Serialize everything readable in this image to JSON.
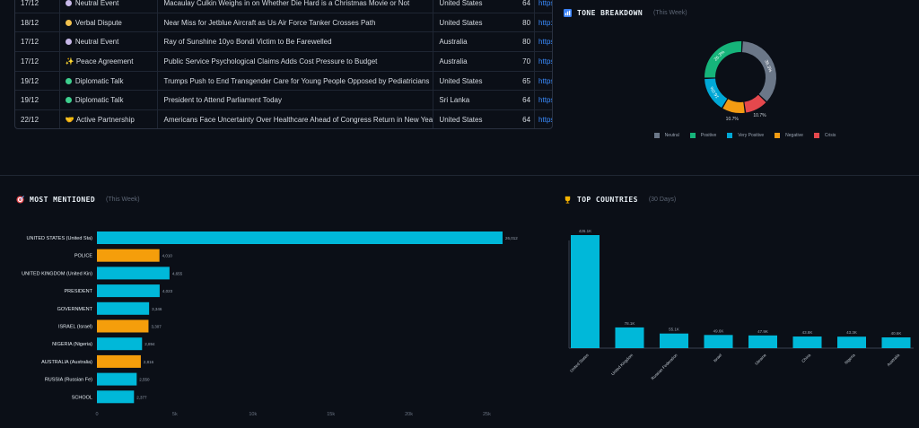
{
  "table": {
    "rows": [
      {
        "date": "17/12",
        "tone": "Neutral Event",
        "tone_color": "#c7b8e8",
        "tone_glyph": "",
        "title": "Macaulay Culkin Weighs in on Whether Die Hard is a Christmas Movie or Not",
        "country": "United States",
        "score": "64",
        "url": "https://w"
      },
      {
        "date": "18/12",
        "tone": "Verbal Dispute",
        "tone_color": "#f2c14e",
        "tone_glyph": "",
        "title": "Near Miss for Jetblue Aircraft as Us Air Force Tanker Crosses Path",
        "country": "United States",
        "score": "80",
        "url": "http://w"
      },
      {
        "date": "17/12",
        "tone": "Neutral Event",
        "tone_color": "#c7b8e8",
        "tone_glyph": "",
        "title": "Ray of Sunshine 10yo Bondi Victim to Be Farewelled",
        "country": "Australia",
        "score": "80",
        "url": "https://w"
      },
      {
        "date": "17/12",
        "tone": "Peace Agreement",
        "tone_color": "",
        "tone_glyph": "✨",
        "title": "Public Service Psychological Claims Adds Cost Pressure to Budget",
        "country": "Australia",
        "score": "70",
        "url": "https://w"
      },
      {
        "date": "19/12",
        "tone": "Diplomatic Talk",
        "tone_color": "#3ecf8e",
        "tone_glyph": "",
        "title": "Trumps Push to End Transgender Care for Young People Opposed by Pediatricians",
        "country": "United States",
        "score": "65",
        "url": "https://w"
      },
      {
        "date": "19/12",
        "tone": "Diplomatic Talk",
        "tone_color": "#3ecf8e",
        "tone_glyph": "",
        "title": "President to Attend Parliament Today",
        "country": "Sri Lanka",
        "score": "64",
        "url": "https://s"
      },
      {
        "date": "22/12",
        "tone": "Active Partnership",
        "tone_color": "",
        "tone_glyph": "🤝",
        "title": "Americans Face Uncertainty Over Healthcare Ahead of Congress Return in New Year",
        "country": "United States",
        "score": "64",
        "url": "https://w"
      }
    ]
  },
  "tone": {
    "title": "TONE BREAKDOWN",
    "period": "(This Week)",
    "slices": [
      {
        "name": "Neutral",
        "pct": 36.3,
        "label": "36.3%",
        "color": "#6b7788"
      },
      {
        "name": "Crisis",
        "pct": 10.7,
        "label": "10.7%",
        "color": "#e5484d"
      },
      {
        "name": "Negative",
        "pct": 10.7,
        "label": "10.7%",
        "color": "#f39c12"
      },
      {
        "name": "Very Positive",
        "pct": 16.0,
        "label": "16.0%",
        "color": "#00a8d6"
      },
      {
        "name": "Positive",
        "pct": 26.3,
        "label": "26.3%",
        "color": "#16b47a"
      }
    ],
    "legend": [
      {
        "name": "Neutral",
        "color": "#6b7788"
      },
      {
        "name": "Positive",
        "color": "#16b47a"
      },
      {
        "name": "Very Positive",
        "color": "#00a8d6"
      },
      {
        "name": "Negative",
        "color": "#f39c12"
      },
      {
        "name": "Crisis",
        "color": "#e5484d"
      }
    ]
  },
  "mentioned": {
    "title": "MOST MENTIONED",
    "period": "(This Week)"
  },
  "countries": {
    "title": "TOP COUNTRIES",
    "period": "(30 Days)"
  },
  "chart_data": [
    {
      "type": "bar",
      "orientation": "horizontal",
      "categories": [
        "UNITED STATES (United Sta)",
        "POLICE",
        "UNITED KINGDOM (United Kin)",
        "PRESIDENT",
        "GOVERNMENT",
        "ISRAEL (Israel)",
        "NIGERIA (Nigeria)",
        "AUSTRALIA (Australia)",
        "RUSSIA (Russian Fe)",
        "SCHOOL"
      ],
      "values": [
        26012,
        4010,
        4655,
        4023,
        3346,
        3307,
        2894,
        2816,
        2550,
        2377
      ],
      "value_labels": [
        "26,012",
        "4,010",
        "4,655",
        "4,023",
        "3,346",
        "3,307",
        "2,894",
        "2,816",
        "2,550",
        "2,377"
      ],
      "colors": [
        "#00b8d9",
        "#f59e0b",
        "#00b8d9",
        "#00b8d9",
        "#00b8d9",
        "#f59e0b",
        "#00b8d9",
        "#f59e0b",
        "#00b8d9",
        "#00b8d9"
      ],
      "xlim": [
        0,
        27500
      ],
      "xticks": [
        0,
        5000,
        10000,
        15000,
        20000,
        25000
      ],
      "xtick_labels": [
        "0",
        "5k",
        "10k",
        "15k",
        "20k",
        "25k"
      ]
    },
    {
      "type": "bar",
      "categories": [
        "United States",
        "United Kingdom",
        "Russian Federation",
        "Israel",
        "Ukraine",
        "China",
        "Nigeria",
        "Australia"
      ],
      "values": [
        426100,
        78100,
        55100,
        49600,
        47900,
        43800,
        43300,
        40600
      ],
      "value_labels": [
        "426.1K",
        "78.1K",
        "55.1K",
        "49.6K",
        "47.9K",
        "43.8K",
        "43.3K",
        "40.6K"
      ],
      "color": "#00b8d9",
      "ylim": [
        0,
        430000
      ]
    }
  ]
}
